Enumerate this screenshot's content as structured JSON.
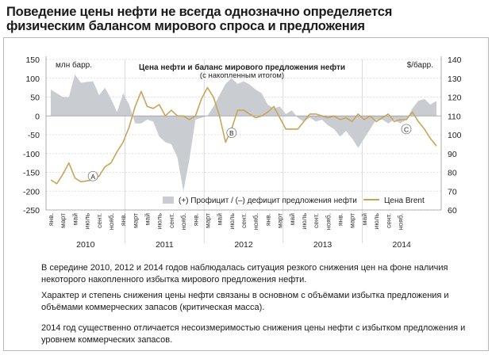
{
  "headline": [
    "Поведение цены нефти не всегда однозначно определяется",
    "физическим балансом мирового спроса и предложения"
  ],
  "chart_data": {
    "type": "area+line",
    "title": "Цена нефти и баланс мирового предложения нефти",
    "subtitle": "(с накопленным итогом)",
    "y_left": {
      "label": "млн барр.",
      "ticks": [
        150,
        100,
        50,
        0,
        -50,
        -100,
        -150,
        -200,
        -250
      ],
      "range": [
        -250,
        150
      ]
    },
    "y_right": {
      "label": "$/барр.",
      "ticks": [
        140,
        130,
        120,
        110,
        100,
        90,
        80,
        70,
        60
      ],
      "range": [
        60,
        140
      ]
    },
    "month_labels": [
      "янв.",
      "март",
      "май",
      "июль",
      "сент.",
      "нояб."
    ],
    "years": [
      "2010",
      "2011",
      "2012",
      "2013",
      "2014"
    ],
    "series": [
      {
        "name": "(+) Профицит / (–) дефицит предложения нефти",
        "kind": "area",
        "color": "#c9cdd2",
        "values": [
          70,
          60,
          50,
          50,
          110,
          88,
          90,
          92,
          55,
          75,
          45,
          10,
          60,
          30,
          -20,
          -20,
          -10,
          -15,
          -55,
          -70,
          -75,
          -110,
          -200,
          -115,
          -10,
          -5,
          0,
          25,
          55,
          85,
          100,
          85,
          92,
          83,
          70,
          60,
          30,
          20,
          25,
          5,
          15,
          -5,
          -15,
          -5,
          -15,
          -10,
          -25,
          -35,
          -55,
          -40,
          -60,
          -85,
          -60,
          -35,
          -10,
          -10,
          -20,
          -10,
          -20,
          -10,
          20,
          40,
          45,
          30,
          40
        ]
      },
      {
        "name": "Цена Brent",
        "kind": "line",
        "color": "#c9a458",
        "values": [
          76,
          74,
          79,
          85,
          77,
          75,
          75.5,
          76,
          78,
          83,
          85,
          91,
          96,
          104,
          115,
          123,
          115,
          114,
          116,
          110,
          113,
          110,
          110,
          108,
          110,
          119,
          125,
          120,
          110,
          96,
          103,
          113,
          113,
          111,
          109,
          110,
          112,
          115,
          109,
          103,
          103,
          103,
          107,
          111,
          111,
          110,
          109,
          110,
          108,
          109,
          107,
          111,
          108,
          110,
          107,
          109,
          111,
          107,
          108,
          108,
          112,
          107,
          103,
          98,
          94
        ]
      }
    ],
    "annotations": [
      "A",
      "B",
      "C"
    ],
    "grid": true
  },
  "notes": [
    "В середине 2010, 2012 и 2014 годов наблюдалась ситуация резкого снижения цен на фоне наличия некоторого накопленного избытка мирового предложения нефти.",
    "Характер и степень снижения цены нефти связаны в основном с объёмами избытка предложения и объёмами коммерческих запасов (критическая масса).",
    "2014 год существенно отличается несоизмеримостью снижения цены нефти с избытком предложения и уровнем коммерческих запасов."
  ]
}
